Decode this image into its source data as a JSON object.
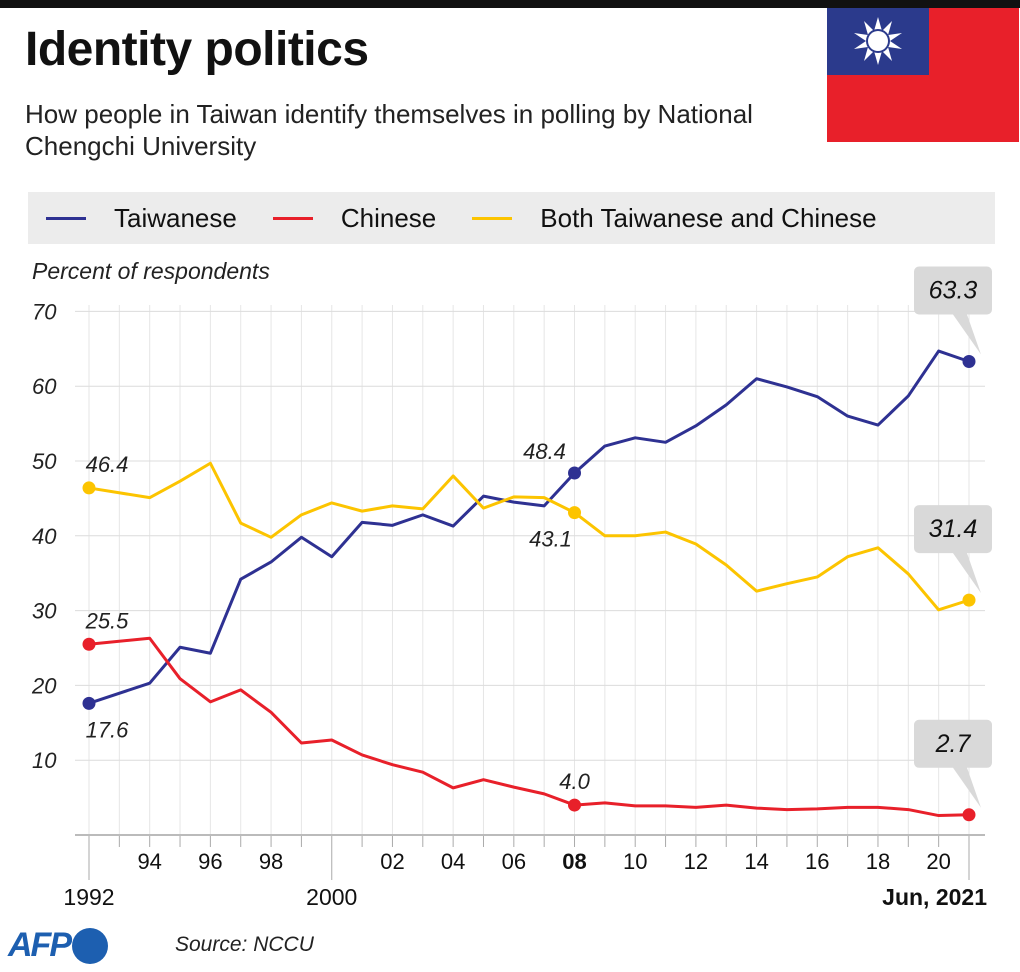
{
  "header": {
    "title": "Identity politics",
    "subtitle": "How people in Taiwan identify themselves in polling by National Chengchi University"
  },
  "footer": {
    "source": "Source: NCCU",
    "logo": "AFP"
  },
  "colors": {
    "taiwanese": "#2e3192",
    "chinese": "#e8202a",
    "both": "#fcc400",
    "flag_red": "#e8202a",
    "flag_blue": "#2b3a8c"
  },
  "chart_data": {
    "type": "line",
    "title": "Identity politics",
    "ylabel": "Percent of respondents",
    "xlabel": "",
    "ylim": [
      0,
      70
    ],
    "yticks": [
      10,
      20,
      30,
      40,
      50,
      60,
      70
    ],
    "xlim": [
      1992,
      2021
    ],
    "xtick_labels": [
      {
        "year": 1994,
        "label": "94"
      },
      {
        "year": 1996,
        "label": "96"
      },
      {
        "year": 1998,
        "label": "98"
      },
      {
        "year": 2002,
        "label": "02"
      },
      {
        "year": 2004,
        "label": "04"
      },
      {
        "year": 2006,
        "label": "06"
      },
      {
        "year": 2008,
        "label": "08",
        "bold": true
      },
      {
        "year": 2010,
        "label": "10"
      },
      {
        "year": 2012,
        "label": "12"
      },
      {
        "year": 2014,
        "label": "14"
      },
      {
        "year": 2016,
        "label": "16"
      },
      {
        "year": 2018,
        "label": "18"
      },
      {
        "year": 2020,
        "label": "20"
      }
    ],
    "xmajor_labels": [
      {
        "year": 1992,
        "label": "1992"
      },
      {
        "year": 2000,
        "label": "2000"
      },
      {
        "year": 2021,
        "label": "Jun, 2021",
        "bold": true
      }
    ],
    "legend_position": "top",
    "x": [
      1992,
      1994,
      1995,
      1996,
      1997,
      1998,
      1999,
      2000,
      2001,
      2002,
      2003,
      2004,
      2005,
      2006,
      2007,
      2008,
      2009,
      2010,
      2011,
      2012,
      2013,
      2014,
      2015,
      2016,
      2017,
      2018,
      2019,
      2020,
      2021
    ],
    "series": [
      {
        "key": "taiwanese",
        "name": "Taiwanese",
        "color": "#2e3192",
        "values": [
          17.6,
          20.3,
          25.1,
          24.3,
          34.2,
          36.5,
          39.8,
          37.2,
          41.8,
          41.4,
          42.8,
          41.3,
          45.3,
          44.5,
          44.0,
          48.4,
          52.0,
          53.1,
          52.5,
          54.7,
          57.5,
          61.0,
          59.9,
          58.6,
          56.0,
          54.8,
          58.7,
          64.7,
          63.3
        ]
      },
      {
        "key": "chinese",
        "name": "Chinese",
        "color": "#e8202a",
        "values": [
          25.5,
          26.3,
          20.9,
          17.8,
          19.4,
          16.4,
          12.3,
          12.7,
          10.7,
          9.4,
          8.4,
          6.3,
          7.4,
          6.4,
          5.5,
          4.0,
          4.3,
          3.9,
          3.9,
          3.7,
          4.0,
          3.6,
          3.4,
          3.5,
          3.7,
          3.7,
          3.4,
          2.6,
          2.7
        ]
      },
      {
        "key": "both",
        "name": "Both Taiwanese and Chinese",
        "color": "#fcc400",
        "values": [
          46.4,
          45.1,
          47.3,
          49.7,
          41.7,
          39.8,
          42.8,
          44.4,
          43.3,
          44.0,
          43.6,
          48.0,
          43.7,
          45.2,
          45.1,
          43.1,
          40.0,
          40.0,
          40.5,
          38.9,
          36.1,
          32.6,
          33.6,
          34.5,
          37.2,
          38.4,
          34.9,
          30.1,
          31.4
        ]
      }
    ],
    "annotations": [
      {
        "series": 0,
        "year": 1992,
        "text": "17.6",
        "place": "below"
      },
      {
        "series": 1,
        "year": 1992,
        "text": "25.5",
        "place": "above"
      },
      {
        "series": 2,
        "year": 1992,
        "text": "46.4",
        "place": "above"
      },
      {
        "series": 0,
        "year": 2008,
        "text": "48.4",
        "place": "above-left"
      },
      {
        "series": 2,
        "year": 2008,
        "text": "43.1",
        "place": "below-left"
      },
      {
        "series": 1,
        "year": 2008,
        "text": "4.0",
        "place": "above"
      },
      {
        "series": 0,
        "year": 2021,
        "text": "63.3",
        "place": "box"
      },
      {
        "series": 2,
        "year": 2021,
        "text": "31.4",
        "place": "box"
      },
      {
        "series": 1,
        "year": 2021,
        "text": "2.7",
        "place": "box"
      }
    ]
  }
}
